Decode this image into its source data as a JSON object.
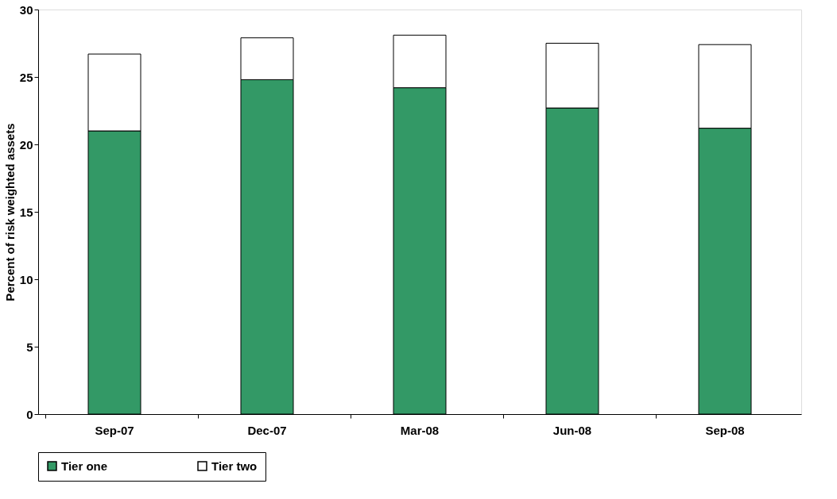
{
  "chart_data": {
    "type": "bar",
    "stacked": true,
    "ylabel": "Percent of risk weighted assets",
    "categories": [
      "Sep-07",
      "Dec-07",
      "Mar-08",
      "Jun-08",
      "Sep-08"
    ],
    "series": [
      {
        "name": "Tier one",
        "color": "#339966",
        "values": [
          21.0,
          24.8,
          24.2,
          22.7,
          21.2
        ]
      },
      {
        "name": "Tier two",
        "color": "#ffffff",
        "values": [
          5.7,
          3.1,
          3.9,
          4.8,
          6.2
        ]
      }
    ],
    "ylim": [
      0,
      30
    ],
    "yticks": [
      0,
      5,
      10,
      15,
      20,
      25,
      30
    ],
    "grid": false,
    "legend": "bottom"
  }
}
